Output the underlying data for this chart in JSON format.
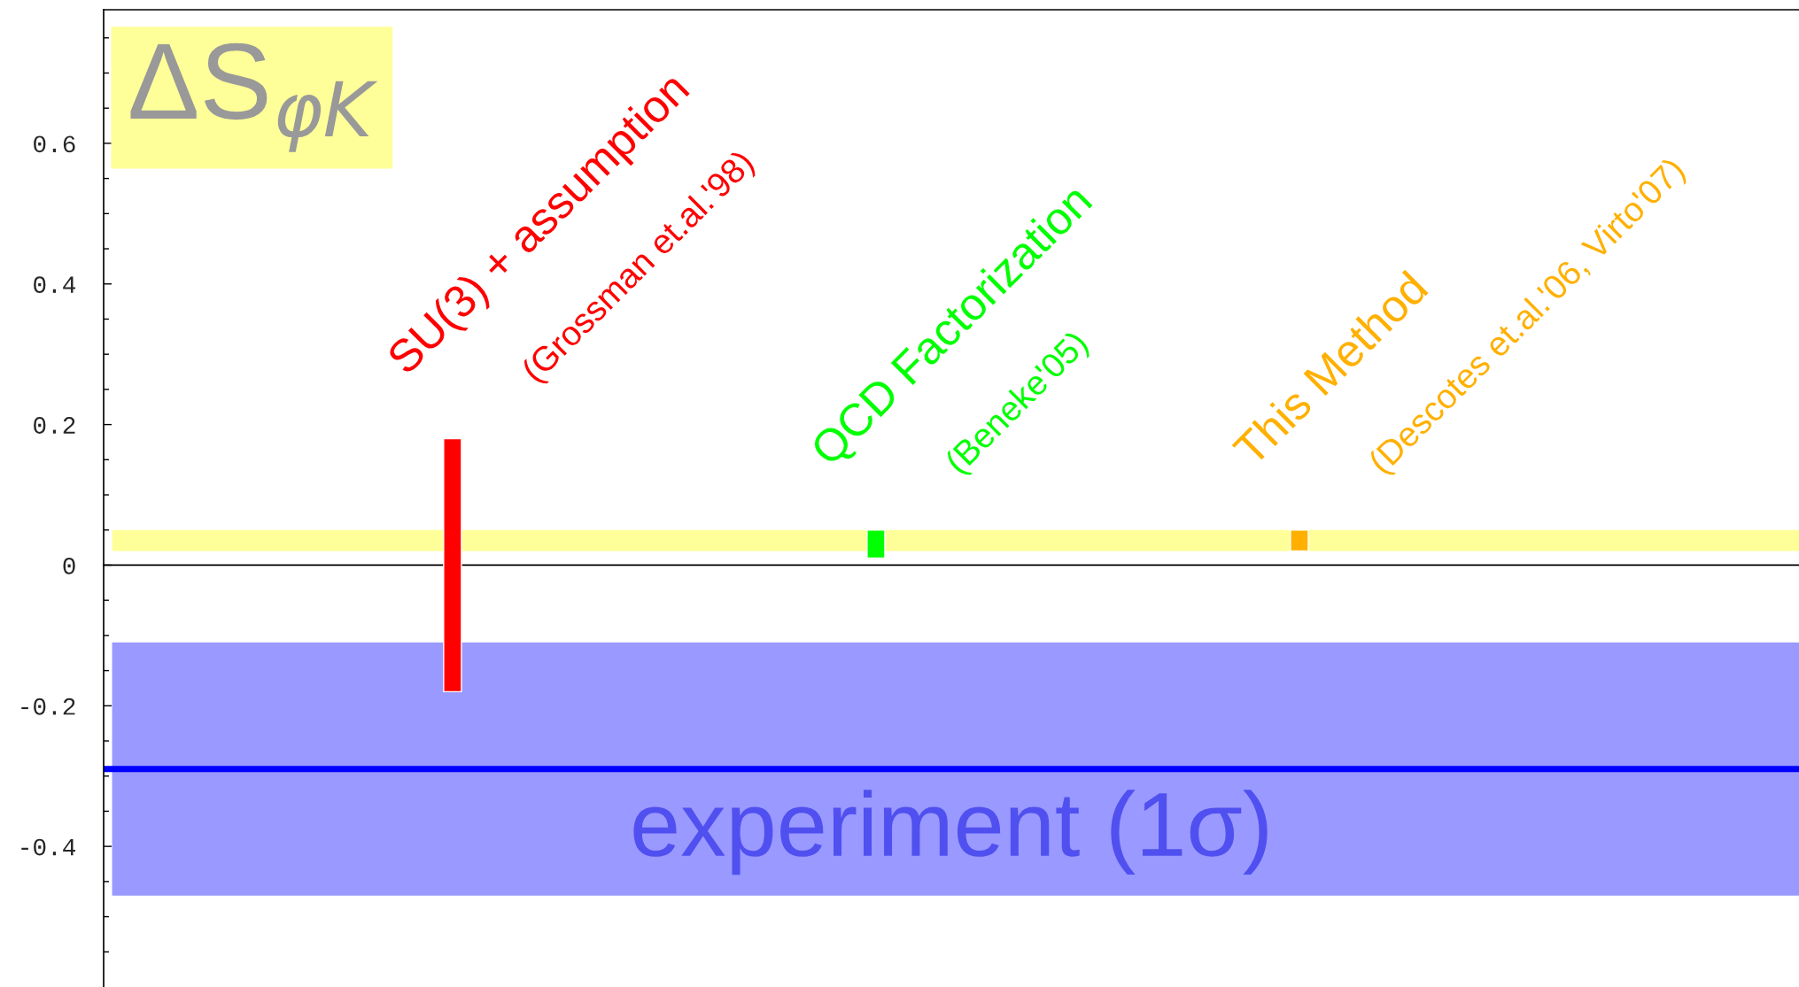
{
  "chart_data": {
    "type": "bar",
    "title": "ΔS$_{φK}$",
    "categories": [
      "SU(3) + assumption",
      "QCD Factorization",
      "This Method"
    ],
    "series": [
      {
        "colors": [
          "#ff0000",
          "#00ff00",
          "#ffb000"
        ],
        "values": [
          0.36,
          0.04,
          0.03
        ],
        "base": [
          -0.18,
          0.01,
          0.02
        ]
      }
    ],
    "annotations": [
      "(Grossman et.al.'98)",
      "(Beneke'05)",
      "(Descotes et.al.'06, Virto'07)"
    ],
    "bands": [
      {
        "axis": "y",
        "from": -0.47,
        "to": -0.11,
        "label": "experiment (1σ)",
        "color": "#9999ff"
      },
      {
        "axis": "y",
        "from": 0.02,
        "to": 0.05,
        "color": "#ffff99"
      }
    ],
    "ref_lines": [
      {
        "axis": "y",
        "value": -0.29,
        "color": "#0000ff"
      }
    ],
    "ylim": [
      -0.6,
      0.79
    ],
    "yticks": [
      -0.4,
      -0.2,
      0,
      0.2,
      0.4,
      0.6,
      {
        "value": -0.55,
        "label": null
      },
      {
        "value": -0.5,
        "label": null
      },
      {
        "value": -0.45,
        "label": null
      },
      {
        "value": -0.35,
        "label": null
      },
      {
        "value": -0.3,
        "label": null
      },
      {
        "value": -0.25,
        "label": null
      },
      {
        "value": -0.15,
        "label": null
      },
      {
        "value": -0.1,
        "label": null
      },
      {
        "value": -0.05,
        "label": null
      },
      {
        "value": 0.05,
        "label": null
      },
      {
        "value": 0.1,
        "label": null
      },
      {
        "value": 0.15,
        "label": null
      },
      {
        "value": 0.25,
        "label": null
      },
      {
        "value": 0.3,
        "label": null
      },
      {
        "value": 0.35,
        "label": null
      },
      {
        "value": 0.45,
        "label": null
      },
      {
        "value": 0.5,
        "label": null
      },
      {
        "value": 0.55,
        "label": null
      },
      {
        "value": 0.65,
        "label": null
      },
      {
        "value": 0.7,
        "label": null
      },
      {
        "value": 0.75,
        "label": null
      }
    ]
  }
}
